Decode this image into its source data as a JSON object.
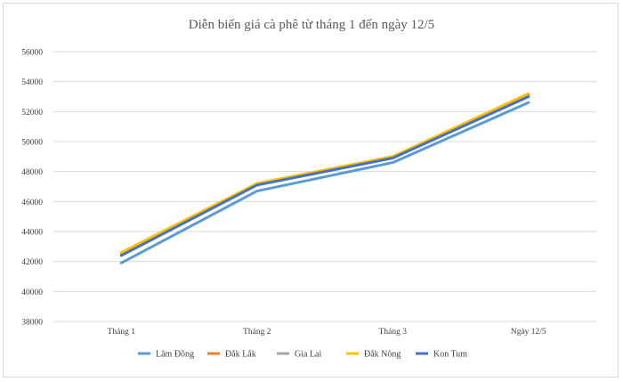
{
  "chart_data": {
    "type": "line",
    "title": "Diễn biến giá cà phê từ tháng 1 đến ngày 12/5",
    "categories": [
      "Tháng 1",
      "Tháng 2",
      "Tháng 3",
      "Ngày 12/5"
    ],
    "ylim": [
      38000,
      56000
    ],
    "yticks": [
      38000,
      40000,
      42000,
      44000,
      46000,
      48000,
      50000,
      52000,
      54000,
      56000
    ],
    "grid": true,
    "legend_position": "bottom",
    "series": [
      {
        "name": "Lâm Đồng",
        "color": "#5B9BD5",
        "values": [
          41900,
          46700,
          48600,
          52600
        ]
      },
      {
        "name": "Đắk Lắk",
        "color": "#ED7D31",
        "values": [
          42500,
          47200,
          49000,
          53100
        ]
      },
      {
        "name": "Gia Lai",
        "color": "#A5A5A5",
        "values": [
          42400,
          47100,
          48900,
          53000
        ]
      },
      {
        "name": "Đắk Nông",
        "color": "#FFC000",
        "values": [
          42600,
          47200,
          49000,
          53200
        ]
      },
      {
        "name": "Kon Tum",
        "color": "#4472C4",
        "values": [
          42400,
          47100,
          48900,
          53000
        ]
      }
    ]
  }
}
